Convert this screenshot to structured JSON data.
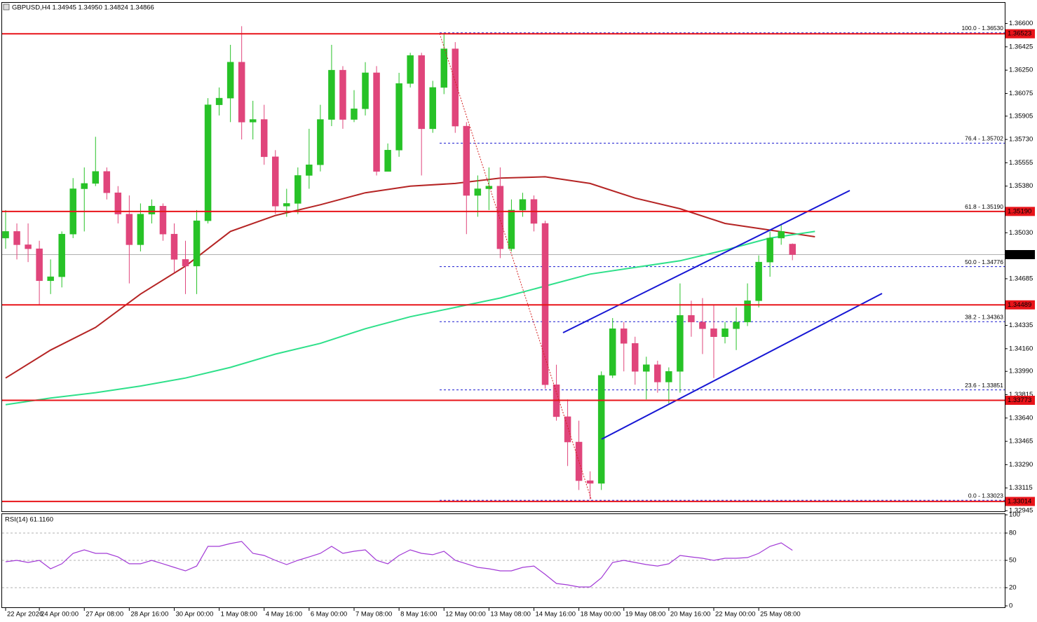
{
  "chart_data": [
    {
      "type": "candlestick",
      "title": "GBPUSD,H4  1.34945 1.34950 1.34824 1.34866",
      "categories": [
        "22 Apr 2026",
        null,
        null,
        "24 Apr 00:00",
        null,
        null,
        null,
        "27 Apr 08:00",
        null,
        null,
        null,
        "28 Apr 16:00",
        null,
        null,
        null,
        "30 Apr 00:00",
        null,
        null,
        null,
        "1 May 08:00",
        null,
        null,
        null,
        "4 May 16:00",
        null,
        null,
        null,
        "6 May 00:00",
        null,
        null,
        null,
        "7 May 08:00",
        null,
        null,
        null,
        "8 May 16:00",
        null,
        null,
        null,
        "12 May 00:00",
        null,
        null,
        null,
        "13 May 08:00",
        null,
        null,
        null,
        "14 May 16:00",
        null,
        null,
        null,
        "18 May 00:00",
        null,
        null,
        null,
        "19 May 08:00",
        null,
        null,
        null,
        "20 May 16:00",
        null,
        null,
        null,
        "22 May 00:00",
        null,
        null,
        null,
        "25 May 08:00",
        null,
        null,
        null
      ],
      "open": [
        1.3499,
        1.3504,
        1.3494,
        1.3491,
        1.3467,
        1.347,
        1.3502,
        1.3536,
        1.354,
        1.3549,
        1.3533,
        1.3517,
        1.3494,
        1.3517,
        1.3523,
        1.3502,
        1.3483,
        1.3478,
        1.3512,
        1.3599,
        1.3604,
        1.3631,
        1.3586,
        1.3588,
        1.356,
        1.3523,
        1.3525,
        1.3546,
        1.3554,
        1.3588,
        1.3625,
        1.3588,
        1.3596,
        1.3623,
        1.3549,
        1.3565,
        1.3615,
        1.3636,
        1.3581,
        1.3612,
        1.3641,
        1.3583,
        1.3531,
        1.3536,
        1.3538,
        1.3491,
        1.352,
        1.3528,
        1.351,
        1.3389,
        1.3365,
        1.3346,
        1.3317,
        1.3315,
        1.3396,
        1.3431,
        1.342,
        1.3399,
        1.3404,
        1.3391,
        1.3399,
        1.3441,
        1.3436,
        1.3431,
        1.3425,
        1.3431,
        1.3436,
        1.3452,
        1.3481,
        1.3499,
        1.34945
      ],
      "high": [
        1.352,
        1.351,
        1.351,
        1.3497,
        1.3483,
        1.3504,
        1.3544,
        1.3552,
        1.3575,
        1.3552,
        1.3538,
        1.3531,
        1.3525,
        1.3528,
        1.3525,
        1.351,
        1.3497,
        1.352,
        1.3604,
        1.3612,
        1.3644,
        1.3658,
        1.3602,
        1.3599,
        1.3565,
        1.3536,
        1.3552,
        1.3581,
        1.3599,
        1.3644,
        1.3628,
        1.361,
        1.3631,
        1.3628,
        1.357,
        1.3623,
        1.3638,
        1.3638,
        1.3617,
        1.3653,
        1.3646,
        1.3586,
        1.3546,
        1.3552,
        1.3552,
        1.3528,
        1.3533,
        1.3531,
        1.3512,
        1.3404,
        1.3378,
        1.3362,
        1.3324,
        1.3399,
        1.3439,
        1.3436,
        1.3425,
        1.341,
        1.3407,
        1.3402,
        1.3465,
        1.3452,
        1.3454,
        1.3449,
        1.3436,
        1.3447,
        1.3465,
        1.3486,
        1.3504,
        1.3509,
        1.3495
      ],
      "low": [
        1.3491,
        1.3483,
        1.3481,
        1.3449,
        1.3457,
        1.3462,
        1.3499,
        1.3504,
        1.3538,
        1.3528,
        1.351,
        1.3465,
        1.3489,
        1.351,
        1.3497,
        1.3473,
        1.3457,
        1.3457,
        1.351,
        1.3591,
        1.3586,
        1.3573,
        1.3573,
        1.3554,
        1.3517,
        1.3515,
        1.3517,
        1.3536,
        1.3549,
        1.3583,
        1.3581,
        1.3586,
        1.3591,
        1.3546,
        1.3549,
        1.356,
        1.3612,
        1.3546,
        1.3578,
        1.3607,
        1.3578,
        1.3502,
        1.3515,
        1.352,
        1.3484,
        1.3489,
        1.3515,
        1.3504,
        1.3386,
        1.3362,
        1.3328,
        1.331,
        1.3303,
        1.331,
        1.3394,
        1.3399,
        1.3389,
        1.3378,
        1.3383,
        1.3375,
        1.3383,
        1.3425,
        1.3412,
        1.3394,
        1.342,
        1.3415,
        1.3433,
        1.3447,
        1.347,
        1.3494,
        1.34824
      ],
      "close": [
        1.3504,
        1.3494,
        1.3491,
        1.3467,
        1.347,
        1.3502,
        1.3536,
        1.354,
        1.3549,
        1.3533,
        1.3517,
        1.3494,
        1.3517,
        1.3523,
        1.3502,
        1.3483,
        1.3478,
        1.3512,
        1.3599,
        1.3604,
        1.3631,
        1.3586,
        1.3588,
        1.356,
        1.3523,
        1.3525,
        1.3546,
        1.3554,
        1.3588,
        1.3625,
        1.3588,
        1.3596,
        1.3623,
        1.3549,
        1.3565,
        1.3615,
        1.3636,
        1.3581,
        1.3612,
        1.3641,
        1.3583,
        1.3531,
        1.3536,
        1.3538,
        1.3491,
        1.352,
        1.3528,
        1.351,
        1.3389,
        1.3365,
        1.3346,
        1.3317,
        1.3315,
        1.3396,
        1.3431,
        1.342,
        1.3399,
        1.3404,
        1.3391,
        1.3399,
        1.3441,
        1.3436,
        1.3431,
        1.3425,
        1.3431,
        1.3436,
        1.3452,
        1.3481,
        1.3499,
        1.3504,
        1.34866
      ],
      "up_color": "#27c227",
      "down_color": "#e0457b",
      "xlim": [
        -0.5,
        88.7
      ],
      "ylim": [
        1.3294,
        1.3675
      ],
      "yticks": [
        {
          "value": 1.366,
          "label": "1.36600"
        },
        1.36425,
        {
          "value": 1.3625,
          "label": "1.36250"
        },
        1.36075,
        1.35905,
        {
          "value": 1.3573,
          "label": "1.35730"
        },
        1.35555,
        {
          "value": 1.3538,
          "label": "1.35380"
        },
        {
          "value": 1.3503,
          "label": "1.35030"
        },
        1.34685,
        1.34335,
        {
          "value": 1.3416,
          "label": "1.34160"
        },
        {
          "value": 1.3399,
          "label": "1.33990"
        },
        1.33815,
        {
          "value": 1.3364,
          "label": "1.33640"
        },
        1.33465,
        {
          "value": 1.3329,
          "label": "1.33290"
        },
        1.33115,
        1.32945
      ],
      "levels": [
        1.36523,
        {
          "value": 1.3519,
          "label": "1.35190"
        },
        1.34489,
        1.33773,
        1.33014
      ],
      "level_color": "#e8141a",
      "last_price": 1.34866,
      "fib_levels": [
        {
          "value": 1.3653,
          "label": "100.0 - 1.36530"
        },
        {
          "value": 1.35702,
          "label": "76.4 - 1.35702"
        },
        {
          "value": 1.3519,
          "label": "61.8 - 1.35190"
        },
        {
          "value": 1.34776,
          "label": "50.0 - 1.34776"
        },
        {
          "value": 1.34363,
          "label": "38.2 - 1.34363"
        },
        {
          "value": 1.33851,
          "label": "23.6 - 1.33851"
        },
        {
          "value": 1.33023,
          "label": "0.0 - 1.33023"
        }
      ],
      "fib_color": "#1a1ad0",
      "lines": [
        {
          "color": "#b52424",
          "x": [
            0,
            4,
            8,
            12,
            16,
            20,
            24,
            28,
            32,
            36,
            40,
            44,
            48,
            52,
            56,
            60,
            64,
            68,
            72
          ],
          "values": [
            1.3394,
            1.3415,
            1.3432,
            1.3457,
            1.3478,
            1.3504,
            1.3516,
            1.3524,
            1.3533,
            1.3538,
            1.354,
            1.3544,
            1.3545,
            1.354,
            1.3529,
            1.3521,
            1.351,
            1.3505,
            1.35
          ]
        },
        {
          "color": "#2ee08a",
          "x": [
            0,
            4,
            8,
            12,
            16,
            20,
            24,
            28,
            32,
            36,
            40,
            44,
            48,
            52,
            56,
            60,
            64,
            68,
            72
          ],
          "values": [
            1.3374,
            1.3379,
            1.3383,
            1.3388,
            1.3394,
            1.3402,
            1.3412,
            1.342,
            1.3431,
            1.344,
            1.3447,
            1.3454,
            1.3463,
            1.3472,
            1.3477,
            1.3482,
            1.349,
            1.3499,
            1.3504
          ]
        }
      ]
    },
    {
      "type": "line",
      "title": "RSI(14) 61.1160",
      "values": [
        48.5,
        50,
        47.7,
        50,
        40.8,
        46.2,
        57.7,
        61.5,
        57.7,
        57.7,
        53.8,
        46.2,
        46.2,
        50,
        46.2,
        42.3,
        38.5,
        43.8,
        65.4,
        65.4,
        68.5,
        70.8,
        57.7,
        55.4,
        50,
        45.4,
        50,
        53.8,
        57.7,
        65.4,
        57.7,
        60,
        61.5,
        50,
        46.2,
        55.4,
        61.5,
        57.7,
        56.2,
        60,
        50,
        46.2,
        42.3,
        40.8,
        38.5,
        38.5,
        42.3,
        43.8,
        34.6,
        24.6,
        23.1,
        20.8,
        20.8,
        30.8,
        47.7,
        50,
        47.7,
        45.4,
        43.8,
        46.2,
        55.4,
        53.8,
        52.3,
        50,
        52.3,
        52.3,
        53.1,
        57.7,
        65.4,
        69.2,
        61.1
      ],
      "color": "#a23ad6",
      "ylim": [
        0,
        100
      ],
      "yticks": [
        100,
        80,
        50,
        20,
        0
      ],
      "levels": [
        80,
        50,
        20
      ]
    }
  ]
}
